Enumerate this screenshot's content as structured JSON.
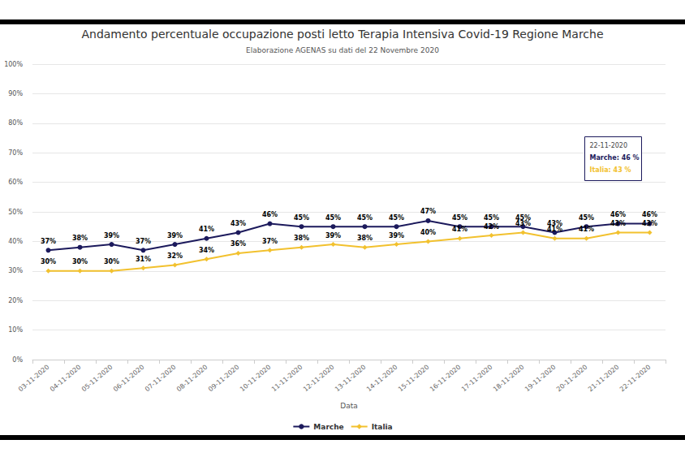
{
  "chart_data": {
    "type": "line",
    "title": "Andamento percentuale occupazione posti letto Terapia Intensiva Covid-19 Regione Marche",
    "subtitle": "Elaborazione AGENAS su dati del 22 Novembre 2020",
    "x_label": "Data",
    "categories": [
      "03-11-2020",
      "04-11-2020",
      "05-11-2020",
      "06-11-2020",
      "07-11-2020",
      "08-11-2020",
      "09-11-2020",
      "10-11-2020",
      "11-11-2020",
      "12-11-2020",
      "13-11-2020",
      "14-11-2020",
      "15-11-2020",
      "16-11-2020",
      "17-11-2020",
      "18-11-2020",
      "19-11-2020",
      "20-11-2020",
      "21-11-2020",
      "22-11-2020"
    ],
    "series": [
      {
        "name": "Marche",
        "color": "#1c1a5c",
        "marker": "circle",
        "values": [
          37,
          38,
          39,
          37,
          39,
          41,
          43,
          46,
          45,
          45,
          45,
          45,
          47,
          45,
          45,
          45,
          43,
          45,
          46,
          46
        ],
        "value_labels": [
          "37%",
          "38%",
          "39%",
          "37%",
          "39%",
          "41%",
          "43%",
          "46%",
          "45%",
          "45%",
          "45%",
          "45%",
          "47%",
          "45%",
          "45%",
          "45%",
          "43%",
          "45%",
          "46%",
          "46%"
        ]
      },
      {
        "name": "Italia",
        "color": "#f2c12e",
        "marker": "diamond",
        "values": [
          30,
          30,
          30,
          31,
          32,
          34,
          36,
          37,
          38,
          39,
          38,
          39,
          40,
          41,
          42,
          43,
          41,
          41,
          43,
          43
        ],
        "value_labels": [
          "30%",
          "30%",
          "30%",
          "31%",
          "32%",
          "34%",
          "36%",
          "37%",
          "38%",
          "39%",
          "38%",
          "39%",
          "40%",
          "41%",
          "42%",
          "43%",
          "41%",
          "41%",
          "43%",
          "43%"
        ]
      }
    ],
    "ylim": [
      0,
      100
    ],
    "yticks": [
      {
        "value": 0,
        "label": "0%"
      },
      {
        "value": 10,
        "label": "10%"
      },
      {
        "value": 20,
        "label": "20%"
      },
      {
        "value": 30,
        "label": "30%"
      },
      {
        "value": 40,
        "label": "40%"
      },
      {
        "value": 50,
        "label": "50%"
      },
      {
        "value": 60,
        "label": "60%"
      },
      {
        "value": 70,
        "label": "70%"
      },
      {
        "value": 80,
        "label": "80%"
      },
      {
        "value": 90,
        "label": "90%"
      },
      {
        "value": 100,
        "label": "100%"
      }
    ],
    "grid": true,
    "legend": "bottom",
    "data_labels": true,
    "annotations": [
      "22-11-2020",
      "Marche: 46 %",
      "Italia: 43 %"
    ]
  }
}
